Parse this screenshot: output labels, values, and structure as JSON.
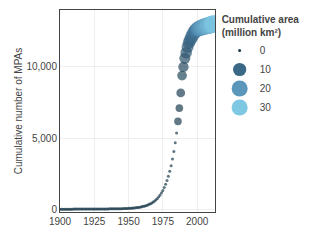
{
  "chart_data": {
    "type": "scatter",
    "ylabel": "Cumulative number of MPAs",
    "xlim": [
      1900,
      2013
    ],
    "ylim": [
      -200,
      14000
    ],
    "xticks": [
      1900,
      1925,
      1950,
      1975,
      2000
    ],
    "yticks": [
      0,
      {
        "value": 5000,
        "label": "5,000"
      },
      {
        "value": 10000,
        "label": "10,000"
      }
    ],
    "x": [
      1900,
      1901,
      1902,
      1903,
      1904,
      1905,
      1906,
      1907,
      1908,
      1909,
      1910,
      1911,
      1912,
      1913,
      1914,
      1915,
      1916,
      1917,
      1918,
      1919,
      1920,
      1921,
      1922,
      1923,
      1924,
      1925,
      1926,
      1927,
      1928,
      1929,
      1930,
      1931,
      1932,
      1933,
      1934,
      1935,
      1936,
      1937,
      1938,
      1939,
      1940,
      1941,
      1942,
      1943,
      1944,
      1945,
      1946,
      1947,
      1948,
      1949,
      1950,
      1951,
      1952,
      1953,
      1954,
      1955,
      1956,
      1957,
      1958,
      1959,
      1960,
      1961,
      1962,
      1963,
      1964,
      1965,
      1966,
      1967,
      1968,
      1969,
      1970,
      1971,
      1972,
      1973,
      1974,
      1975,
      1976,
      1977,
      1978,
      1979,
      1980,
      1981,
      1982,
      1983,
      1984,
      1985,
      1986,
      1987,
      1988,
      1989,
      1990,
      1991,
      1992,
      1993,
      1994,
      1995,
      1996,
      1997,
      1998,
      1999,
      2000,
      2001,
      2002,
      2003,
      2004,
      2005,
      2006,
      2007,
      2008,
      2009,
      2010,
      2011,
      2012
    ],
    "values": [
      2,
      2,
      2,
      2,
      2,
      2,
      2,
      2,
      2,
      2,
      3,
      3,
      3,
      3,
      3,
      4,
      4,
      4,
      4,
      5,
      6,
      6,
      6,
      7,
      7,
      8,
      9,
      9,
      10,
      11,
      13,
      14,
      15,
      16,
      17,
      18,
      20,
      22,
      24,
      26,
      29,
      30,
      31,
      32,
      33,
      35,
      38,
      42,
      46,
      52,
      58,
      64,
      70,
      77,
      86,
      97,
      109,
      123,
      139,
      157,
      178,
      202,
      228,
      260,
      296,
      337,
      385,
      440,
      503,
      575,
      660,
      755,
      868,
      1000,
      1150,
      1320,
      1520,
      1750,
      2010,
      2310,
      2660,
      3060,
      3520,
      4050,
      4660,
      5360,
      6170,
      7100,
      8170,
      9390,
      10000,
      10600,
      11000,
      11400,
      11700,
      11900,
      12100,
      12300,
      12450,
      12550,
      12620,
      12680,
      12730,
      12760,
      12790,
      12820,
      12850,
      12880,
      12910,
      12940,
      12970,
      13000,
      13020
    ],
    "size": [
      0,
      0,
      0,
      0,
      0,
      0,
      0,
      0,
      0,
      0,
      0,
      0,
      0,
      0,
      0,
      0,
      0,
      0,
      0,
      0,
      0,
      0,
      0,
      0,
      0,
      0,
      0,
      0,
      0,
      0,
      0,
      0,
      0,
      0,
      0,
      0,
      0,
      0,
      0,
      0,
      0,
      0,
      0,
      0,
      0,
      0,
      0,
      0,
      0,
      0,
      0,
      0,
      0,
      0,
      0,
      0,
      0,
      0,
      0,
      0,
      0,
      0,
      0,
      0,
      0,
      0,
      0,
      0,
      0,
      0,
      0,
      0,
      0,
      0,
      0,
      0,
      0,
      0,
      0,
      0,
      0,
      0,
      0,
      0,
      0,
      0,
      1,
      1,
      2,
      3,
      4,
      5,
      6,
      7,
      8,
      9,
      10,
      11,
      12,
      13,
      15,
      17,
      19,
      20,
      21,
      22,
      23,
      24,
      25,
      26,
      27,
      28,
      30
    ],
    "size_range": [
      0,
      30
    ],
    "colorscale": [
      "#1b3a4b",
      "#4a7fa5",
      "#7ec8e3"
    ],
    "size_legend": {
      "title": "Cumulative area\n(million km²)",
      "values": [
        0,
        10,
        20,
        30
      ]
    }
  }
}
